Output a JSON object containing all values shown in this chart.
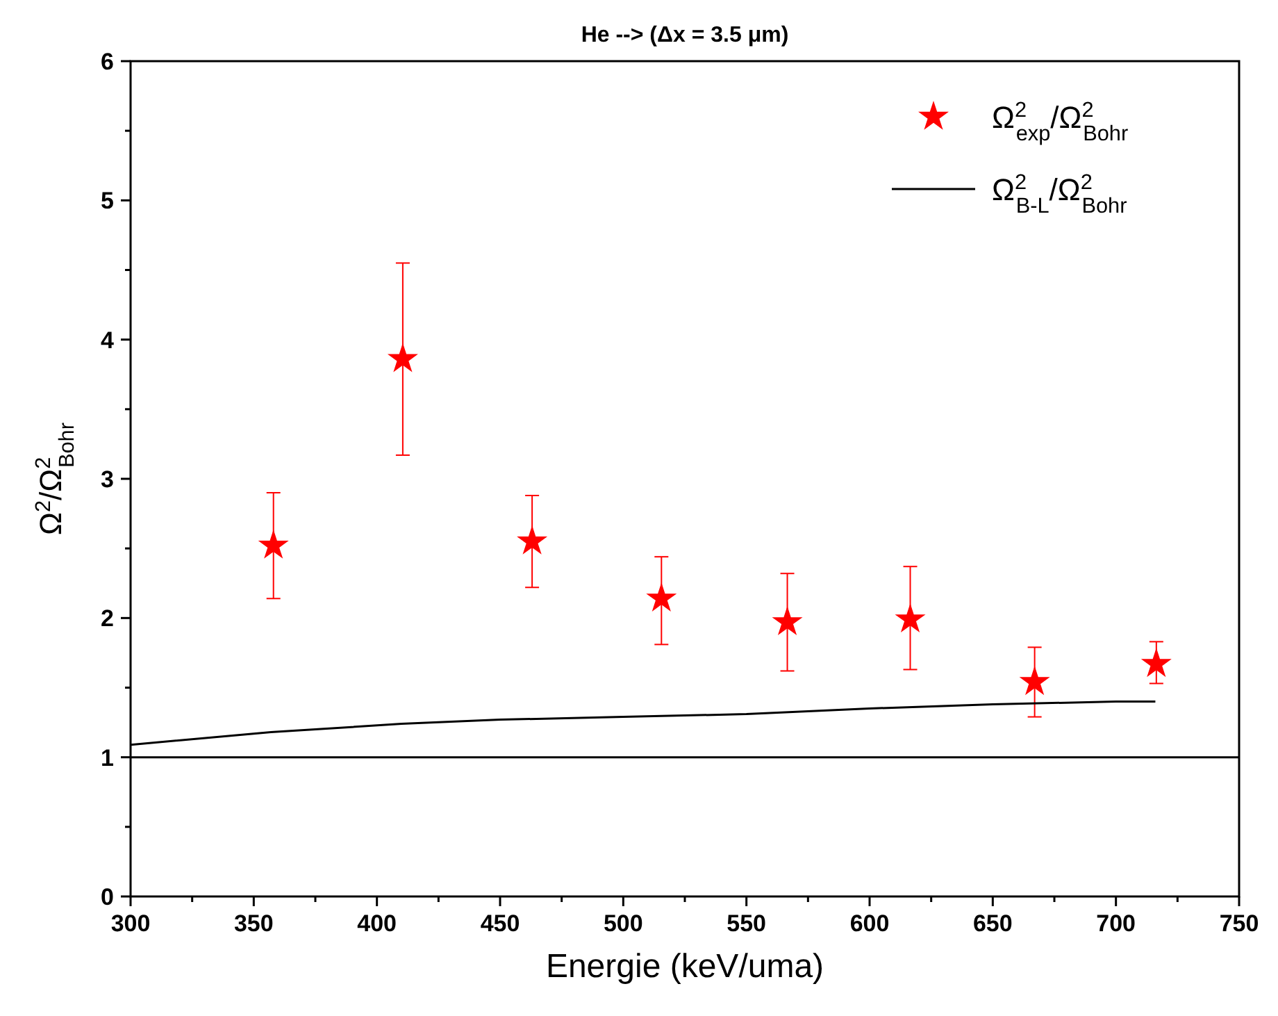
{
  "chart_data": {
    "type": "scatter",
    "title": "He --> (Δx = 3.5 μm)",
    "xlabel": "Energie (keV/uma)",
    "ylabel": "Ω$^{2}$/Ω$^{2}$$_{Bohr}$",
    "xlim": [
      300,
      750
    ],
    "xticks": [
      300,
      {
        "value": 325,
        "label": null
      },
      350,
      {
        "value": 375,
        "label": null
      },
      400,
      {
        "value": 425,
        "label": null
      },
      450,
      {
        "value": 475,
        "label": null
      },
      500,
      {
        "value": 525,
        "label": null
      },
      550,
      {
        "value": 575,
        "label": null
      },
      600,
      {
        "value": 625,
        "label": null
      },
      650,
      {
        "value": 675,
        "label": null
      },
      700,
      {
        "value": 725,
        "label": null
      },
      750
    ],
    "ylim": [
      0,
      6
    ],
    "yticks": [
      0,
      {
        "value": 0.5,
        "label": null
      },
      1,
      {
        "value": 1.5,
        "label": null
      },
      2,
      {
        "value": 2.5,
        "label": null
      },
      3,
      {
        "value": 3.5,
        "label": null
      },
      4,
      {
        "value": 4.5,
        "label": null
      },
      5,
      {
        "value": 5.5,
        "label": null
      },
      6
    ],
    "legend": "top right",
    "grid": false,
    "series": [
      {
        "name": "Ω$^{2}$$_{exp}$/Ω$^{2}$$_{Bohr}$",
        "marker": "star",
        "color": "#ff0000",
        "x": [
          358,
          410.5,
          463,
          515.5,
          566.6,
          616.5,
          667,
          716.4
        ],
        "values": [
          2.52,
          3.86,
          2.55,
          2.14,
          1.97,
          1.99,
          1.54,
          1.67
        ],
        "errors": [
          [
            2.14,
            2.9
          ],
          [
            3.17,
            4.55
          ],
          [
            2.22,
            2.88
          ],
          [
            1.81,
            2.44
          ],
          [
            1.62,
            2.32
          ],
          [
            1.63,
            2.37
          ],
          [
            1.29,
            1.79
          ],
          [
            1.53,
            1.83
          ]
        ]
      },
      {
        "name": "Ω$^{2}$$_{B-L}$/Ω$^{2}$$_{Bohr}$",
        "type": "line",
        "line_style": "solid",
        "marker": "none",
        "color": "#000000",
        "x": [
          300,
          357,
          410,
          450,
          500,
          550,
          600,
          650,
          700,
          716
        ],
        "values": [
          1.09,
          1.18,
          1.24,
          1.27,
          1.29,
          1.31,
          1.35,
          1.38,
          1.4,
          1.4
        ]
      }
    ],
    "ref_lines": [
      {
        "axis": "y",
        "value": 1,
        "color": "#000000"
      }
    ]
  }
}
